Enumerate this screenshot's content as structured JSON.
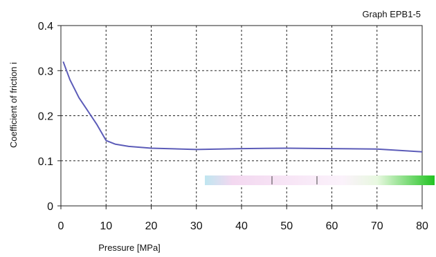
{
  "chart_data": {
    "type": "line",
    "title": "Graph EPB1-5",
    "xlabel": "Pressure [MPa]",
    "ylabel": "Coefficient of friction i",
    "xlim": [
      0,
      80
    ],
    "ylim": [
      0,
      0.4
    ],
    "x_ticks": [
      0,
      10,
      20,
      30,
      40,
      50,
      60,
      70,
      80
    ],
    "y_ticks": [
      0,
      0.1,
      0.2,
      0.3,
      0.4
    ],
    "x_tick_labels": [
      "0",
      "10",
      "20",
      "30",
      "40",
      "50",
      "60",
      "70",
      "80"
    ],
    "y_tick_labels": [
      "0",
      "0.1",
      "0.2",
      "0.3",
      "0.4"
    ],
    "grid": true,
    "series": [
      {
        "color": "#5b5bb8",
        "x": [
          0.5,
          2,
          4,
          6,
          8,
          10,
          12,
          15,
          20,
          30,
          40,
          50,
          60,
          70,
          80
        ],
        "y": [
          0.32,
          0.28,
          0.24,
          0.21,
          0.18,
          0.145,
          0.137,
          0.132,
          0.128,
          0.125,
          0.127,
          0.128,
          0.127,
          0.126,
          0.12
        ]
      }
    ]
  }
}
